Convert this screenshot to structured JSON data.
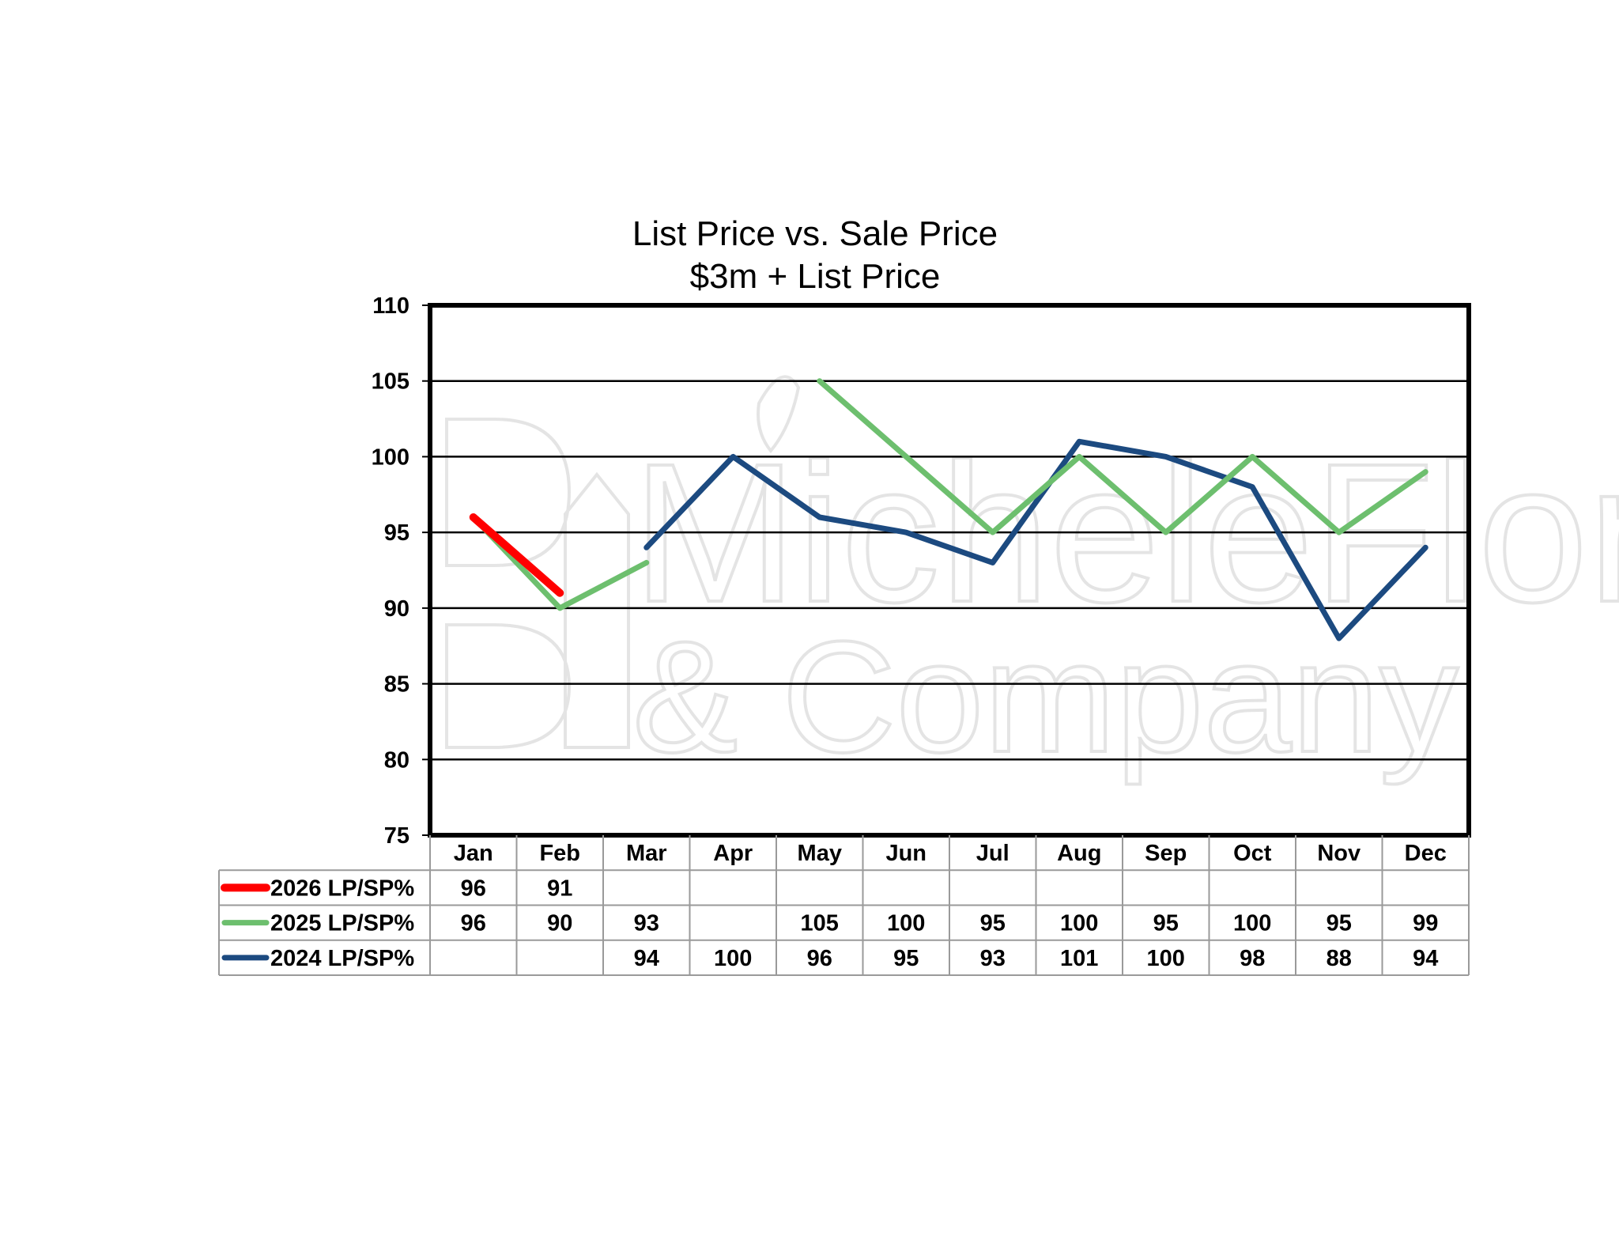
{
  "chart_data": {
    "type": "line",
    "title": "List Price vs. Sale Price",
    "subtitle": "$3m + List Price",
    "categories": [
      "Jan",
      "Feb",
      "Mar",
      "Apr",
      "May",
      "Jun",
      "Jul",
      "Aug",
      "Sep",
      "Oct",
      "Nov",
      "Dec"
    ],
    "ylim": [
      75,
      110
    ],
    "yticks": [
      75,
      80,
      85,
      90,
      95,
      100,
      105,
      110
    ],
    "grid": true,
    "legend_placement": "bottom-left data table",
    "series": [
      {
        "name": "2026 LP/SP%",
        "color": "#ff0000",
        "values": [
          96,
          91,
          null,
          null,
          null,
          null,
          null,
          null,
          null,
          null,
          null,
          null
        ]
      },
      {
        "name": "2025 LP/SP%",
        "color": "#6dbf6e",
        "values": [
          96,
          90,
          93,
          null,
          105,
          100,
          95,
          100,
          95,
          100,
          95,
          99
        ]
      },
      {
        "name": "2024 LP/SP%",
        "color": "#1c4a80",
        "values": [
          null,
          null,
          94,
          100,
          96,
          95,
          93,
          101,
          100,
          98,
          88,
          94
        ]
      }
    ],
    "watermark": "Michele Flory & Company"
  }
}
